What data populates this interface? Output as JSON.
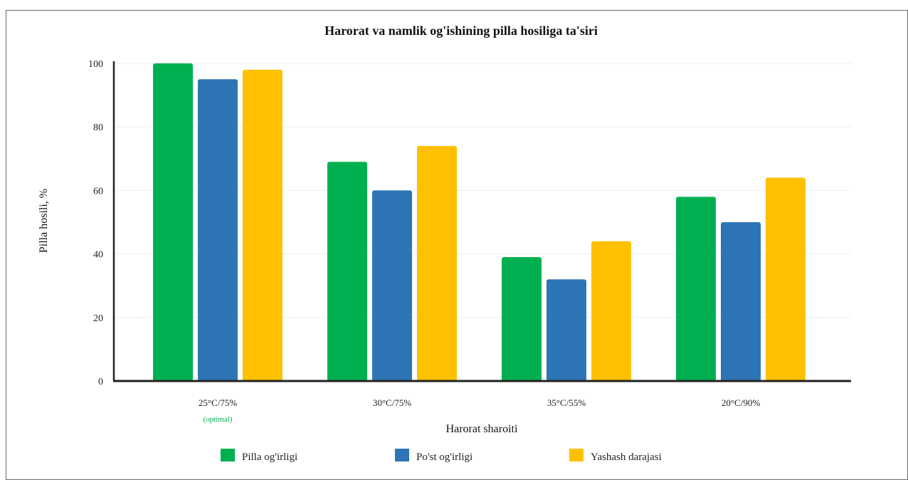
{
  "chart_data": {
    "type": "bar",
    "title": "Harorat va namlik og'ishining pilla hosiliga ta'siri",
    "xlabel": "Harorat sharoiti",
    "ylabel": "Pilla hosili, %",
    "categories": [
      "25°C/75%",
      "30°C/75%",
      "35°C/55%",
      "20°C/90%"
    ],
    "category_notes": [
      "(optimal)",
      "",
      "",
      ""
    ],
    "ylim": [
      0,
      100
    ],
    "yticks": [
      0,
      20,
      40,
      60,
      80,
      100
    ],
    "grid": true,
    "legend_position": "bottom",
    "series": [
      {
        "name": "Pilla og'irligi",
        "color": "#00b050",
        "values": [
          100,
          69,
          39,
          58
        ]
      },
      {
        "name": "Po'st og'irligi",
        "color": "#2e75b6",
        "values": [
          95,
          60,
          32,
          50
        ]
      },
      {
        "name": "Yashash darajasi",
        "color": "#ffc000",
        "values": [
          98,
          74,
          44,
          64
        ]
      }
    ],
    "note_color": "#00b050"
  }
}
